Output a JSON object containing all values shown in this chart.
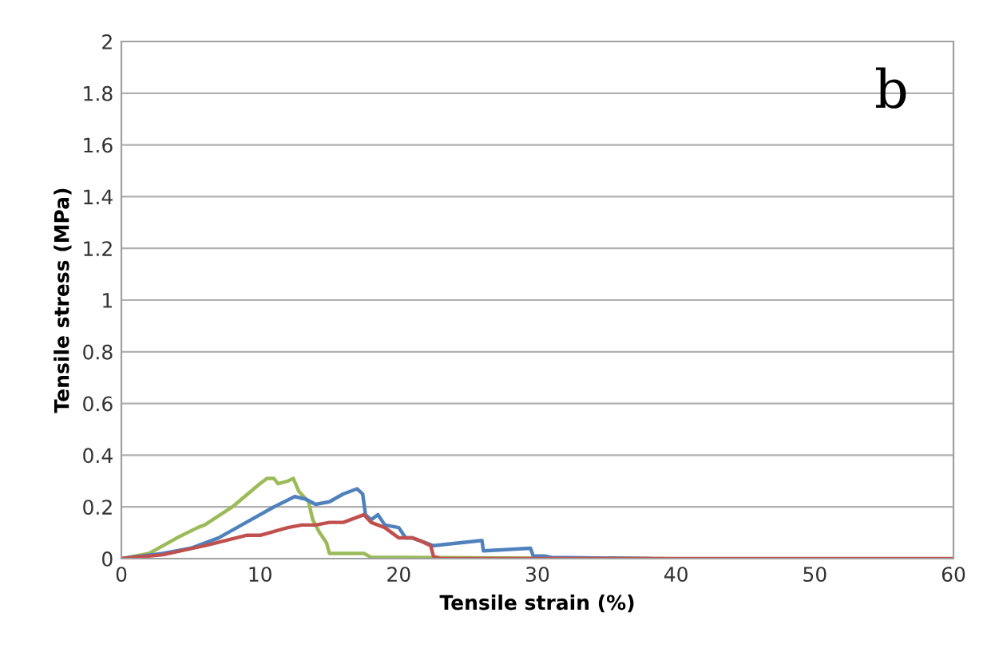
{
  "chart_data": {
    "type": "line",
    "xlabel": "Tensile strain (%)",
    "ylabel": "Tensile stress (MPa)",
    "annotations": [
      "b"
    ],
    "xlim": [
      0,
      60
    ],
    "xticks": [
      0,
      10,
      20,
      30,
      40,
      50,
      60
    ],
    "ylim": [
      0,
      2
    ],
    "yticks": [
      0,
      0.2,
      0.4,
      0.6,
      0.8,
      1,
      1.2,
      1.4,
      1.6,
      1.8,
      2
    ],
    "grid": "y",
    "legend": false,
    "marker": "none",
    "line_style": "solid",
    "series": [
      {
        "color": "#9bbb59",
        "x": [
          0,
          2,
          4,
          5.5,
          6,
          8,
          10,
          10.5,
          11,
          11.3,
          12,
          12.4,
          12.8,
          13.5,
          13.8,
          14.3,
          14.8,
          15,
          17.5,
          18,
          30,
          39
        ],
        "values": [
          0,
          0.02,
          0.08,
          0.12,
          0.13,
          0.2,
          0.29,
          0.31,
          0.31,
          0.29,
          0.3,
          0.31,
          0.26,
          0.22,
          0.15,
          0.1,
          0.06,
          0.02,
          0.02,
          0.005,
          0.002,
          0
        ]
      },
      {
        "color": "#4f81bd",
        "x": [
          0,
          3,
          5,
          7,
          9,
          11,
          12.5,
          13.3,
          14,
          15,
          16,
          17,
          17.4,
          17.6,
          18,
          18.5,
          19,
          20,
          20.5,
          21,
          22,
          22.5,
          26,
          26.1,
          29.5,
          29.7,
          30.5,
          31,
          38
        ],
        "values": [
          0,
          0.02,
          0.04,
          0.08,
          0.14,
          0.2,
          0.24,
          0.23,
          0.21,
          0.22,
          0.25,
          0.27,
          0.25,
          0.17,
          0.15,
          0.17,
          0.13,
          0.12,
          0.08,
          0.08,
          0.06,
          0.05,
          0.07,
          0.03,
          0.04,
          0.01,
          0.01,
          0.005,
          0
        ]
      },
      {
        "color": "#c0504d",
        "x": [
          0,
          3,
          6,
          9,
          10,
          12,
          13,
          14,
          15,
          16,
          17,
          17.5,
          18,
          19,
          19.5,
          20,
          21,
          21.5,
          22.3,
          22.5,
          23,
          60
        ],
        "values": [
          0,
          0.015,
          0.05,
          0.09,
          0.09,
          0.12,
          0.13,
          0.13,
          0.14,
          0.14,
          0.16,
          0.17,
          0.14,
          0.12,
          0.1,
          0.08,
          0.08,
          0.07,
          0.05,
          0.01,
          0,
          0
        ]
      }
    ]
  }
}
